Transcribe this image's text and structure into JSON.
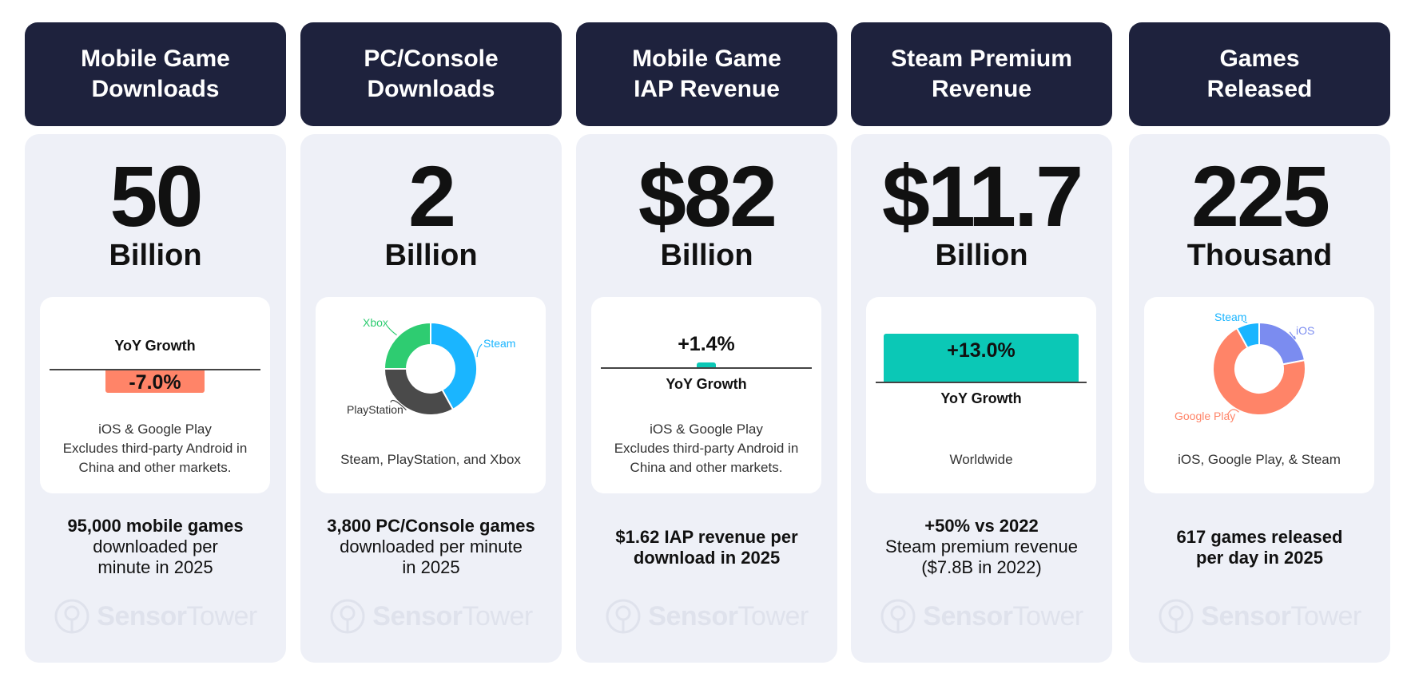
{
  "colors": {
    "header_bg": "#1e223d",
    "panel_bg": "#eef0f7",
    "negative": "#ff8468",
    "positive": "#0bc8b6",
    "steam": "#1ab5ff",
    "xbox": "#2ecc71",
    "playstation": "#4a4a4a",
    "ios": "#7b8cf0",
    "google_play": "#ff8468"
  },
  "watermark": {
    "brand": "Sensor",
    "brand_light": "Tower",
    "icon": "sensor-tower-logo"
  },
  "stats": [
    {
      "title": "Mobile Game\nDownloads",
      "value": "50",
      "unit": "Billion",
      "growth_label": "YoY Growth",
      "growth_text": "-7.0%",
      "note": "iOS & Google Play\nExcludes third-party Android in\nChina and other markets.",
      "footer_lead": "95,000 mobile games",
      "footer_rest": "downloaded per\nminute in 2025"
    },
    {
      "title": "PC/Console\nDownloads",
      "value": "2",
      "unit": "Billion",
      "note": "Steam, PlayStation, and Xbox",
      "footer_lead": "3,800 PC/Console games",
      "footer_rest": "downloaded per minute\nin 2025"
    },
    {
      "title": "Mobile Game\nIAP Revenue",
      "value": "$82",
      "unit": "Billion",
      "growth_label": "YoY Growth",
      "growth_text": "+1.4%",
      "note": "iOS & Google Play\nExcludes third-party Android in\nChina and other markets.",
      "footer_lead": "$1.62 IAP revenue per",
      "footer_rest": "download in 2025"
    },
    {
      "title": "Steam Premium\nRevenue",
      "value": "$11.7",
      "unit": "Billion",
      "growth_label": "YoY Growth",
      "growth_text": "+13.0%",
      "note": "Worldwide",
      "footer_lead": "+50% vs 2022",
      "footer_rest": "Steam premium revenue\n($7.8B in 2022)"
    },
    {
      "title": "Games\nReleased",
      "value": "225",
      "unit": "Thousand",
      "note": "iOS, Google Play, & Steam",
      "footer_lead": "617 games released",
      "footer_rest": "per day in 2025"
    }
  ],
  "chart_data": [
    {
      "type": "bar",
      "title": "YoY Growth",
      "categories": [
        "Mobile Game Downloads"
      ],
      "values": [
        -7.0
      ],
      "unit": "%"
    },
    {
      "type": "pie",
      "segments": [
        {
          "label": "Steam",
          "value": 42
        },
        {
          "label": "PlayStation",
          "value": 33
        },
        {
          "label": "Xbox",
          "value": 25
        }
      ]
    },
    {
      "type": "bar",
      "title": "YoY Growth",
      "categories": [
        "Mobile Game IAP Revenue"
      ],
      "values": [
        1.4
      ],
      "unit": "%"
    },
    {
      "type": "bar",
      "title": "YoY Growth",
      "categories": [
        "Steam Premium Revenue"
      ],
      "values": [
        13.0
      ],
      "unit": "%"
    },
    {
      "type": "pie",
      "segments": [
        {
          "label": "iOS",
          "value": 22
        },
        {
          "label": "Google Play",
          "value": 70
        },
        {
          "label": "Steam",
          "value": 8
        }
      ]
    }
  ]
}
